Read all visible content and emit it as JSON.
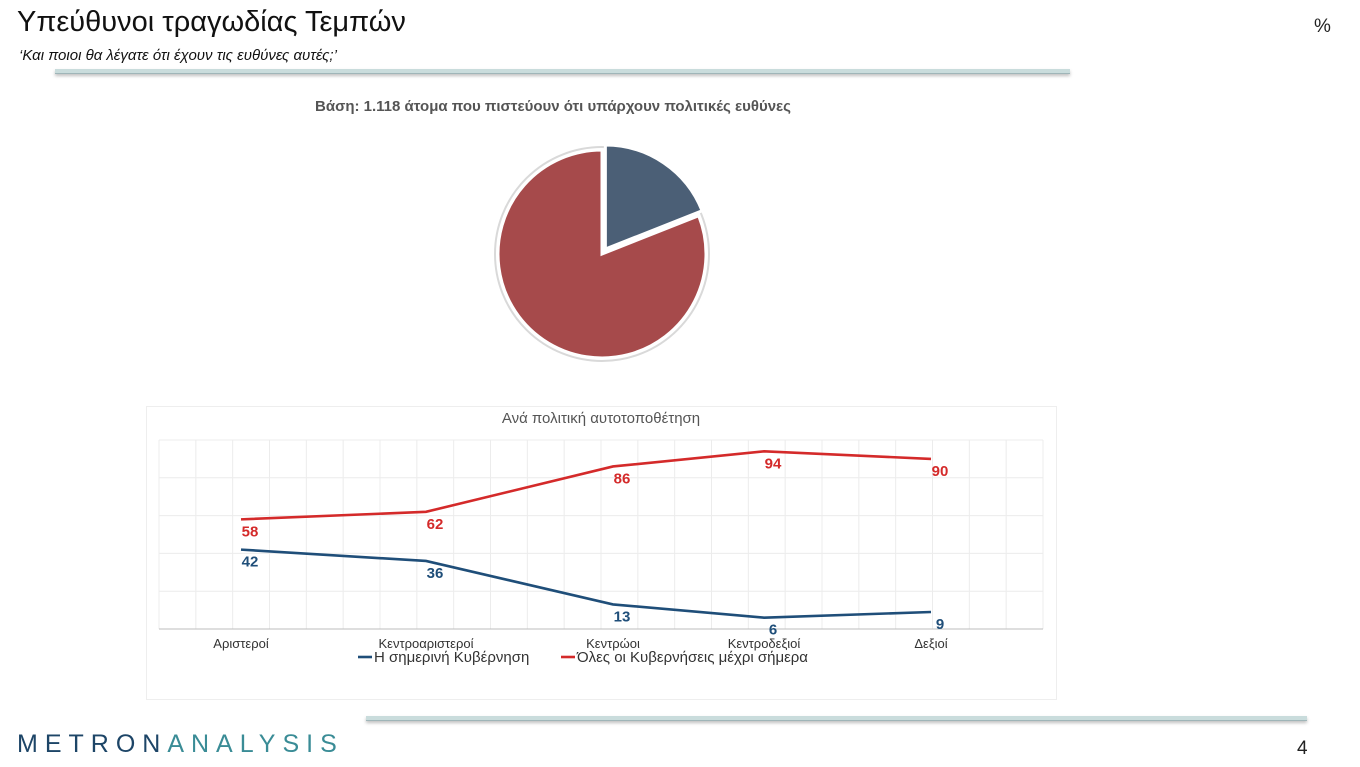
{
  "slide": {
    "title": "Υπεύθυνοι τραγωδίας Τεμπών",
    "subtitle": "‘Και ποιοι θα λέγατε ότι έχουν τις ευθύνες αυτές;’",
    "unit": "%",
    "page_number": "4",
    "logo_part1": "METRON",
    "logo_part2": "ANALYSIS"
  },
  "chart_data": [
    {
      "type": "pie",
      "title": "Βάση: 1.118 άτομα που πιστεύουν ότι υπάρχουν πολιτικές ευθύνες",
      "slices": [
        {
          "value": 19,
          "color": "#4b5f76"
        },
        {
          "value": 81,
          "color": "#a64a4b"
        }
      ],
      "exploded_slice": 0
    },
    {
      "type": "line",
      "title": "Ανά πολιτική αυτοτοποθέτηση",
      "categories": [
        "Αριστεροί",
        "Κεντροαριστεροί",
        "Κεντρώοι",
        "Κεντροδεξιοί",
        "Δεξιοί"
      ],
      "series": [
        {
          "name": "Η σημερινή Κυβέρνηση",
          "values": [
            42,
            36,
            13,
            6,
            9
          ],
          "color": "#1f4e79"
        },
        {
          "name": "Όλες οι Κυβερνήσεις μέχρι σήμερα",
          "values": [
            58,
            62,
            86,
            94,
            90
          ],
          "color": "#d42a2a"
        }
      ],
      "ylim": [
        0,
        100
      ],
      "grid": true,
      "legend": "bottom"
    }
  ]
}
